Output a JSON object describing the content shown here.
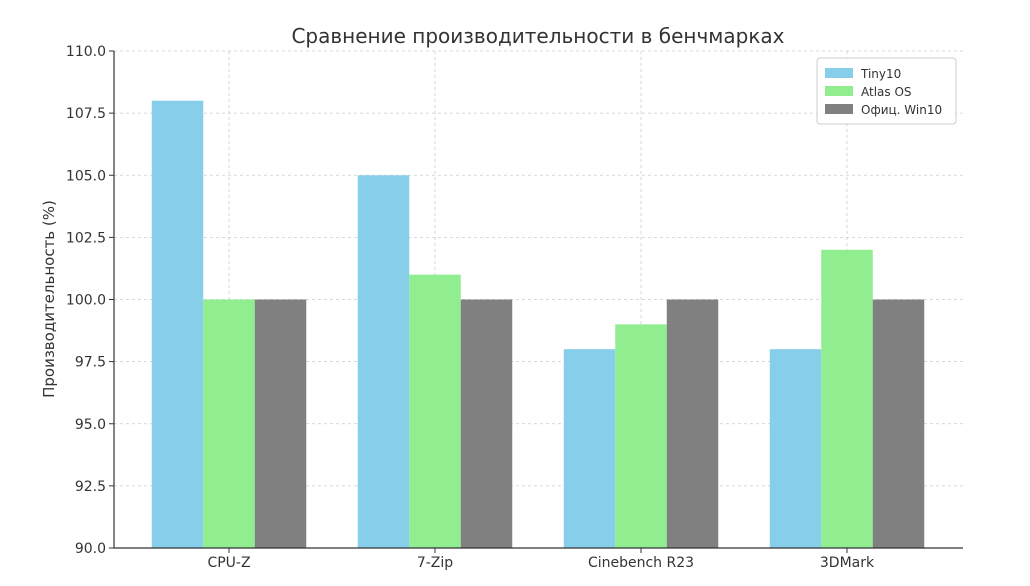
{
  "chart_data": {
    "type": "bar",
    "title": "Сравнение производительности в бенчмарках",
    "xlabel": "",
    "ylabel": "Производительность (%)",
    "categories": [
      "CPU-Z",
      "7-Zip",
      "Cinebench R23",
      "3DMark"
    ],
    "series": [
      {
        "name": "Tiny10",
        "color": "#87ceeb",
        "values": [
          108,
          105,
          98,
          98
        ]
      },
      {
        "name": "Atlas OS",
        "color": "#90ee90",
        "values": [
          100,
          101,
          99,
          102
        ]
      },
      {
        "name": "Офиц. Win10",
        "color": "#808080",
        "values": [
          100,
          100,
          100,
          100
        ]
      }
    ],
    "ylim": [
      90,
      110
    ],
    "yticks": [
      "90.0",
      "92.5",
      "95.0",
      "97.5",
      "100.0",
      "102.5",
      "105.0",
      "107.5",
      "110.0"
    ],
    "grid": true,
    "legend_position": "top-right"
  }
}
